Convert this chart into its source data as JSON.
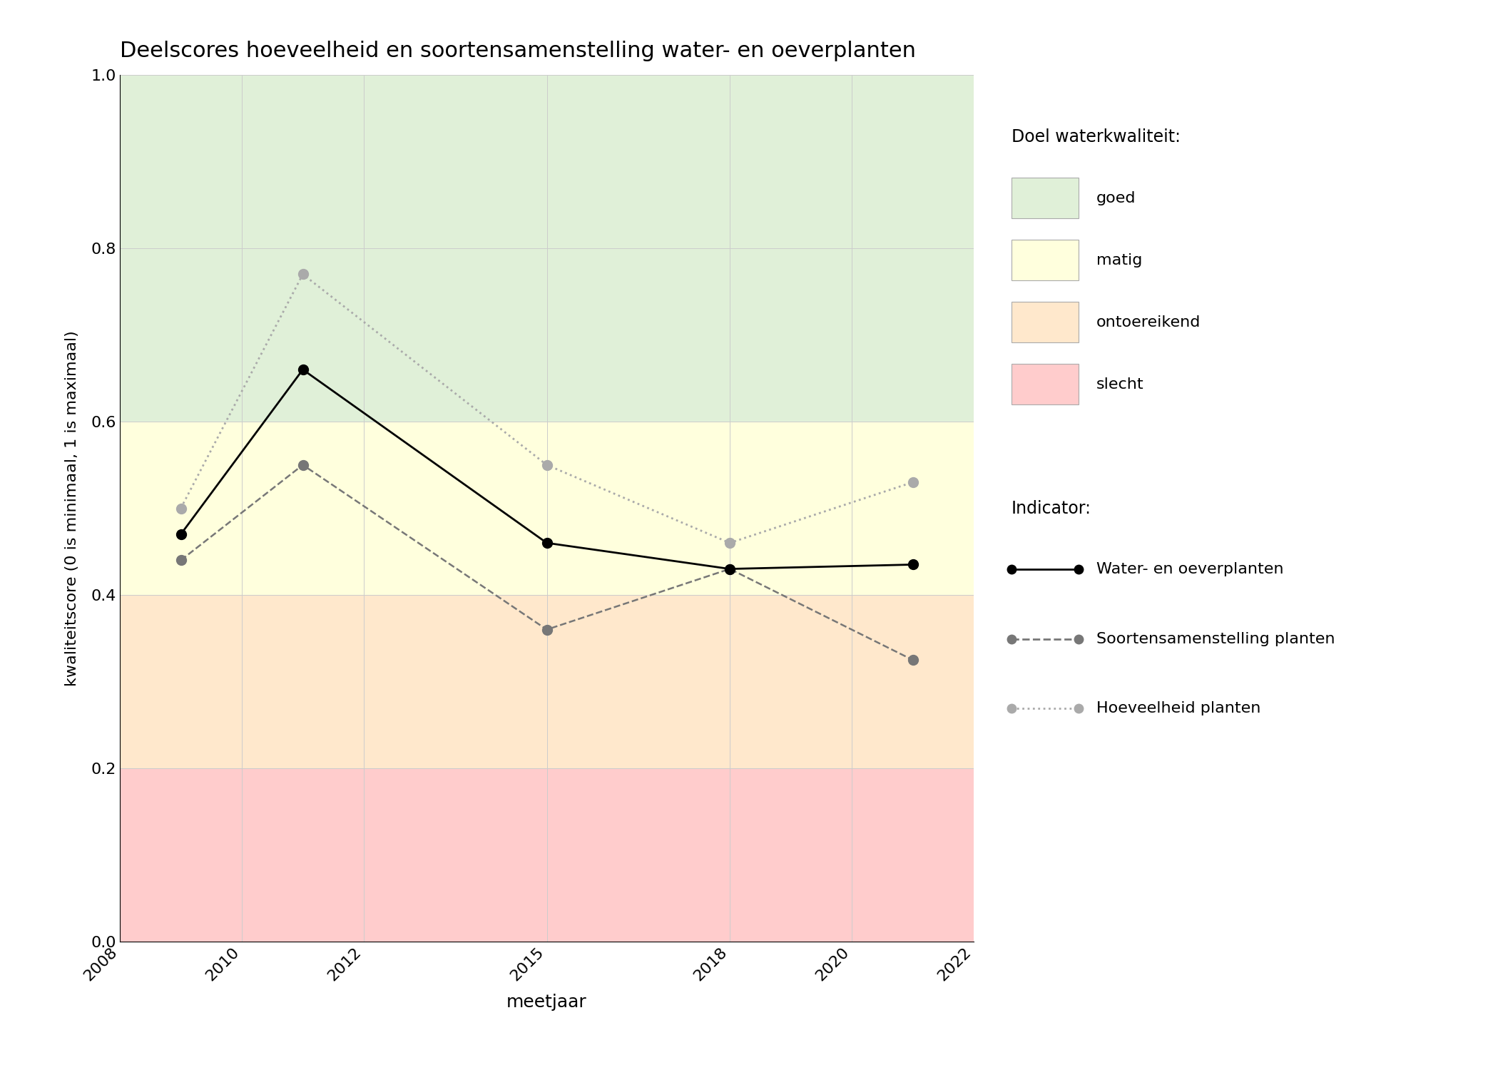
{
  "title": "Deelscores hoeveelheid en soortensamenstelling water- en oeverplanten",
  "xlabel": "meetjaar",
  "ylabel": "kwaliteitscore (0 is minimaal, 1 is maximaal)",
  "xlim": [
    2008,
    2022
  ],
  "ylim": [
    0.0,
    1.0
  ],
  "xticks": [
    2008,
    2010,
    2012,
    2015,
    2018,
    2020,
    2022
  ],
  "yticks": [
    0.0,
    0.2,
    0.4,
    0.6,
    0.8,
    1.0
  ],
  "background_zones": [
    {
      "ymin": 0.0,
      "ymax": 0.2,
      "color": "#ffcccc",
      "label": "slecht"
    },
    {
      "ymin": 0.2,
      "ymax": 0.4,
      "color": "#ffe8cc",
      "label": "ontoereikend"
    },
    {
      "ymin": 0.4,
      "ymax": 0.6,
      "color": "#ffffdd",
      "label": "matig"
    },
    {
      "ymin": 0.6,
      "ymax": 1.0,
      "color": "#e0f0d8",
      "label": "goed"
    }
  ],
  "series": {
    "water_oever": {
      "years": [
        2009,
        2011,
        2015,
        2018,
        2021
      ],
      "values": [
        0.47,
        0.66,
        0.46,
        0.43,
        0.435
      ],
      "color": "#000000",
      "linestyle": "solid",
      "linewidth": 2.0,
      "marker": "o",
      "markersize": 10,
      "label": "Water- en oeverplanten"
    },
    "soortensamenstelling": {
      "years": [
        2009,
        2011,
        2015,
        2018,
        2021
      ],
      "values": [
        0.44,
        0.55,
        0.36,
        0.43,
        0.325
      ],
      "color": "#777777",
      "linestyle": "dashed",
      "linewidth": 1.8,
      "marker": "o",
      "markersize": 10,
      "label": "Soortensamenstelling planten"
    },
    "hoeveelheid": {
      "years": [
        2009,
        2011,
        2015,
        2018,
        2021
      ],
      "values": [
        0.5,
        0.77,
        0.55,
        0.46,
        0.53
      ],
      "color": "#aaaaaa",
      "linestyle": "dotted",
      "linewidth": 2.0,
      "marker": "o",
      "markersize": 10,
      "label": "Hoeveelheid planten"
    }
  },
  "legend_quality_title": "Doel waterkwaliteit:",
  "legend_indicator_title": "Indicator:",
  "figure_bg": "#ffffff",
  "axes_bg": "#ffffff",
  "grid_color": "#cccccc",
  "grid_alpha": 1.0
}
